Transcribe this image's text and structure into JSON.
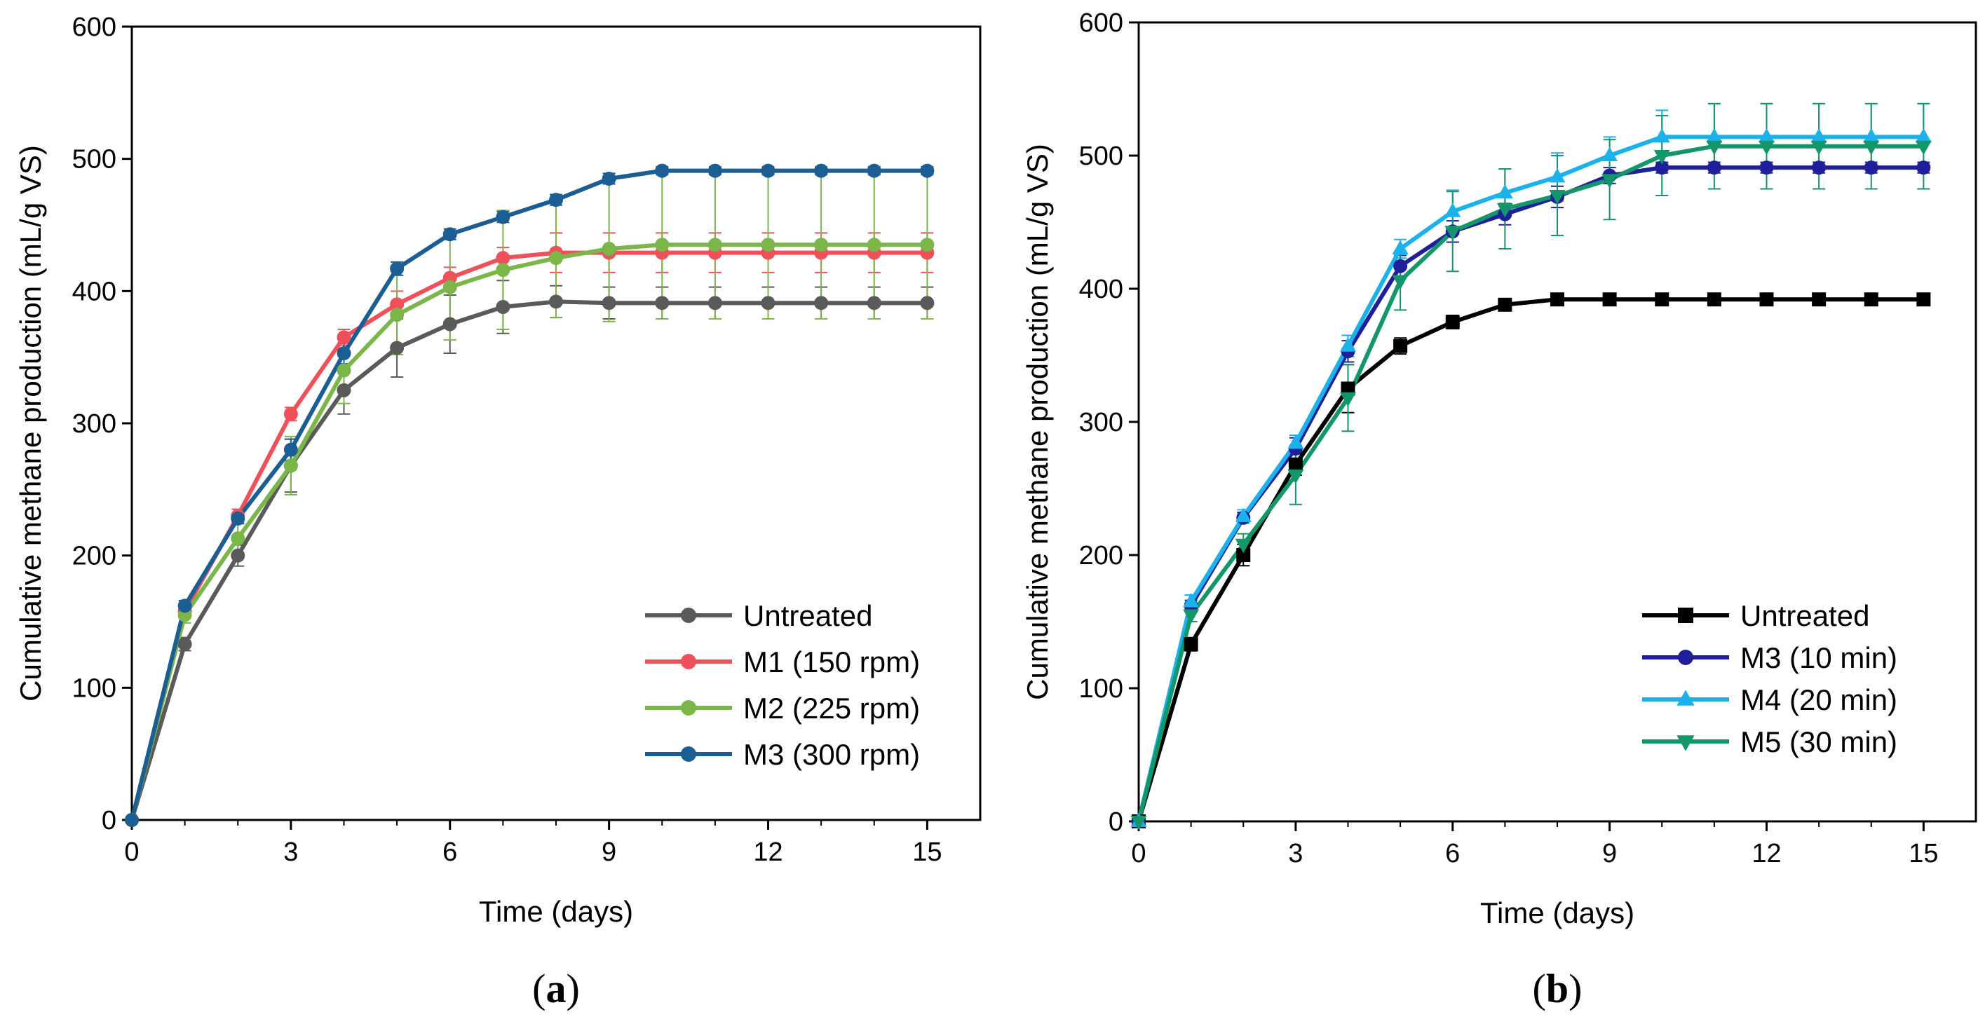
{
  "chart_data": [
    {
      "type": "line",
      "panel_label": "(a)",
      "panel_letter": "a",
      "xlabel": "Time (days)",
      "ylabel": "Cumulative methane production (mL/g VS)",
      "xlim": [
        0,
        16
      ],
      "ylim": [
        0,
        600
      ],
      "xticks": [
        0,
        3,
        6,
        9,
        12,
        15
      ],
      "yticks": [
        0,
        100,
        200,
        300,
        400,
        500,
        600
      ],
      "legend_position": "bottom-right",
      "x": [
        0,
        1,
        2,
        3,
        4,
        5,
        6,
        7,
        8,
        9,
        10,
        11,
        12,
        13,
        14,
        15
      ],
      "series": [
        {
          "name": "Untreated",
          "color": "#5a5a5a",
          "marker": "circle",
          "values": [
            0,
            133,
            200,
            268,
            325,
            357,
            375,
            388,
            392,
            391,
            391,
            391,
            391,
            391,
            391,
            391
          ],
          "errors": [
            0,
            5,
            8,
            20,
            18,
            22,
            22,
            20,
            12,
            12,
            12,
            12,
            12,
            12,
            12,
            12
          ]
        },
        {
          "name": "M1 (150 rpm)",
          "color": "#f0505a",
          "marker": "circle",
          "values": [
            0,
            158,
            230,
            307,
            365,
            390,
            410,
            425,
            429,
            429,
            429,
            429,
            429,
            429,
            429,
            429
          ],
          "errors": [
            0,
            5,
            5,
            5,
            6,
            10,
            8,
            8,
            15,
            15,
            15,
            15,
            15,
            15,
            15,
            15
          ]
        },
        {
          "name": "M2 (225 rpm)",
          "color": "#7ab648",
          "marker": "circle",
          "values": [
            0,
            155,
            213,
            268,
            340,
            382,
            403,
            416,
            425,
            432,
            435,
            435,
            435,
            435,
            435,
            435
          ],
          "errors": [
            0,
            6,
            12,
            22,
            25,
            30,
            40,
            45,
            45,
            55,
            56,
            56,
            56,
            56,
            56,
            56
          ]
        },
        {
          "name": "M3 (300 rpm)",
          "color": "#1a5e94",
          "marker": "circle",
          "values": [
            0,
            162,
            228,
            280,
            353,
            417,
            443,
            456,
            469,
            485,
            491,
            491,
            491,
            491,
            491,
            491
          ],
          "errors": [
            0,
            4,
            4,
            8,
            8,
            5,
            4,
            4,
            4,
            4,
            3,
            3,
            3,
            3,
            3,
            3
          ]
        }
      ]
    },
    {
      "type": "line",
      "panel_label": "(b)",
      "panel_letter": "b",
      "xlabel": "Time (days)",
      "ylabel": "Cumulative methane production (mL/g VS)",
      "xlim": [
        0,
        16
      ],
      "ylim": [
        0,
        600
      ],
      "xticks": [
        0,
        3,
        6,
        9,
        12,
        15
      ],
      "yticks": [
        0,
        100,
        200,
        300,
        400,
        500,
        600
      ],
      "legend_position": "bottom-right",
      "x": [
        0,
        1,
        2,
        3,
        4,
        5,
        6,
        7,
        8,
        9,
        10,
        11,
        12,
        13,
        14,
        15
      ],
      "series": [
        {
          "name": "Untreated",
          "color": "#000000",
          "marker": "square",
          "values": [
            0,
            133,
            200,
            268,
            325,
            357,
            375,
            388,
            392,
            392,
            392,
            392,
            392,
            392,
            392,
            392
          ],
          "errors": [
            0,
            5,
            8,
            8,
            18,
            6,
            5,
            4,
            3,
            3,
            3,
            3,
            3,
            3,
            3,
            3
          ]
        },
        {
          "name": "M3 (10 min)",
          "color": "#1f1f9c",
          "marker": "circle",
          "values": [
            0,
            162,
            228,
            280,
            353,
            417,
            443,
            456,
            469,
            485,
            491,
            491,
            491,
            491,
            491,
            491
          ],
          "errors": [
            0,
            4,
            4,
            8,
            8,
            8,
            8,
            8,
            8,
            6,
            4,
            4,
            4,
            4,
            4,
            4
          ]
        },
        {
          "name": "M4 (20 min)",
          "color": "#1ab2ea",
          "marker": "triangle-up",
          "values": [
            0,
            165,
            229,
            284,
            357,
            430,
            458,
            472,
            484,
            500,
            514,
            514,
            514,
            514,
            514,
            514
          ],
          "errors": [
            0,
            5,
            5,
            6,
            8,
            7,
            16,
            18,
            18,
            14,
            20,
            25,
            25,
            25,
            25,
            25
          ]
        },
        {
          "name": "M5 (30 min)",
          "color": "#139669",
          "marker": "triangle-down",
          "values": [
            0,
            155,
            208,
            260,
            318,
            406,
            443,
            460,
            470,
            482,
            500,
            507,
            507,
            507,
            507,
            507
          ],
          "errors": [
            0,
            5,
            8,
            22,
            25,
            22,
            30,
            30,
            30,
            30,
            30,
            32,
            32,
            32,
            32,
            32
          ]
        }
      ]
    }
  ]
}
